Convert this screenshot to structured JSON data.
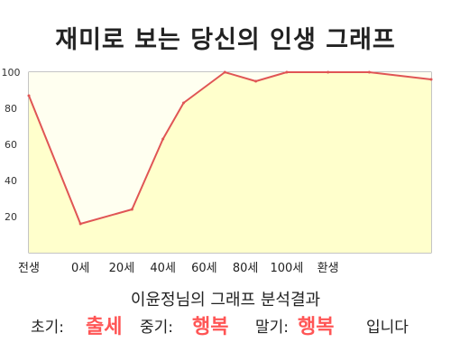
{
  "title": "재미로 보는 당신의 인생 그래프",
  "result": {
    "heading": "이윤정님의 그래프 분석결과",
    "early_label": "초기:",
    "early_value": "출세",
    "mid_label": "중기:",
    "mid_value": "행복",
    "late_label": "말기:",
    "late_value": "행복",
    "ending": "입니다"
  },
  "colors": {
    "line": "#e05555",
    "fill": "#ffffcc",
    "fill_light": "#fffff0",
    "highlight": "#ff5555"
  },
  "chart_data": {
    "type": "area",
    "title": "",
    "x": [
      -25,
      0,
      25,
      40,
      50,
      70,
      85,
      100,
      120,
      140,
      170
    ],
    "values": [
      87,
      16,
      24,
      63,
      83,
      100,
      95,
      100,
      100,
      100,
      96
    ],
    "xlim": [
      -25,
      170
    ],
    "ylim": [
      0,
      100
    ],
    "yticks": [
      20,
      40,
      60,
      80,
      100
    ],
    "xticks": [
      {
        "x": -25,
        "label": "전생"
      },
      {
        "x": 0,
        "label": "0세"
      },
      {
        "x": 20,
        "label": "20세"
      },
      {
        "x": 40,
        "label": "40세"
      },
      {
        "x": 60,
        "label": "60세"
      },
      {
        "x": 80,
        "label": "80세"
      },
      {
        "x": 100,
        "label": "100세"
      },
      {
        "x": 120,
        "label": "환생"
      }
    ],
    "grid": false
  }
}
